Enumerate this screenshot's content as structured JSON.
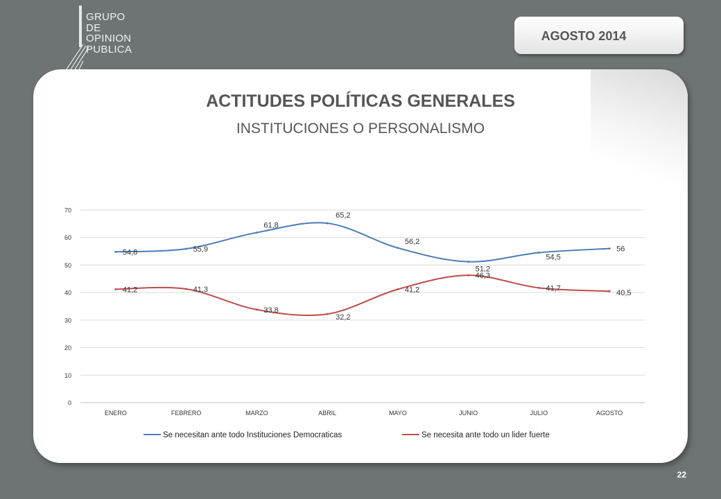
{
  "header": {
    "logo_lines": [
      "GRUPO",
      "DE",
      "OPINION",
      "PUBLICA"
    ],
    "date_label": "AGOSTO 2014"
  },
  "page_number": "22",
  "colors": {
    "series1": "#4a7ab5",
    "series2": "#be4b48"
  },
  "chart_data": {
    "type": "line",
    "title": "ACTITUDES POLÍTICAS GENERALES",
    "subtitle": "INSTITUCIONES O PERSONALISMO",
    "categories": [
      "ENERO",
      "FEBRERO",
      "MARZO",
      "ABRIL",
      "MAYO",
      "JUNIO",
      "JULIO",
      "AGOSTO"
    ],
    "ylim": [
      0,
      70
    ],
    "yticks": [
      0,
      10,
      20,
      30,
      40,
      50,
      60,
      70
    ],
    "grid": true,
    "legend": "bottom",
    "series": [
      {
        "name": "Se necesitan ante todo Instituciones Democraticas",
        "values": [
          54.8,
          55.9,
          61.8,
          65.2,
          56.2,
          51.2,
          54.5,
          56
        ],
        "labels": [
          "54,8",
          "55,9",
          "61,8",
          "65,2",
          "56,2",
          "51,2",
          "54,5",
          "56"
        ]
      },
      {
        "name": "Se necesita ante todo un lider fuerte",
        "values": [
          41.2,
          41.3,
          33.8,
          32.2,
          41.2,
          46.3,
          41.7,
          40.5
        ],
        "labels": [
          "41,2",
          "41,3",
          "33,8",
          "32,2",
          "41,2",
          "46,3",
          "41,7",
          "40,5"
        ]
      }
    ]
  }
}
